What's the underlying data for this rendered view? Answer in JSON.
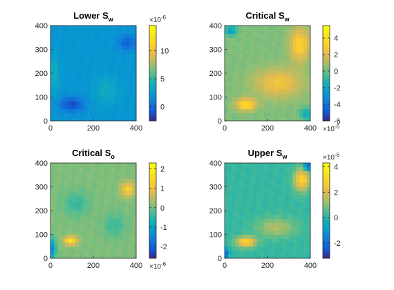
{
  "chart_data": [
    {
      "type": "heatmap",
      "title": "Lower S",
      "title_sub": "w",
      "xlim": [
        0,
        400
      ],
      "ylim": [
        0,
        400
      ],
      "xticks": [
        "0",
        "200",
        "400"
      ],
      "yticks": [
        "0",
        "100",
        "200",
        "300",
        "400"
      ],
      "colorbar": {
        "min": -2.5,
        "max": 14.5,
        "ticks": [
          "0",
          "5",
          "10"
        ],
        "tick_values": [
          0,
          5,
          10
        ],
        "exponent": "×10",
        "exponent_power": "-6",
        "exponent_position": "top"
      },
      "background_level": 0.28,
      "features": [
        {
          "x": 100,
          "y": 70,
          "sx": 55,
          "sy": 30,
          "level": 0.06
        },
        {
          "x": 360,
          "y": 330,
          "sx": 45,
          "sy": 30,
          "level": 0.12
        },
        {
          "x": 260,
          "y": 130,
          "sx": 60,
          "sy": 60,
          "level": 0.36
        },
        {
          "x": 20,
          "y": 200,
          "sx": 20,
          "sy": 80,
          "level": 0.38
        }
      ]
    },
    {
      "type": "heatmap",
      "title": "Critical S",
      "title_sub": "w",
      "xlim": [
        0,
        400
      ],
      "ylim": [
        0,
        400
      ],
      "xticks": [
        "0",
        "200",
        "400"
      ],
      "yticks": [
        "0",
        "100",
        "200",
        "300",
        "400"
      ],
      "colorbar": {
        "min": -6,
        "max": 5.5,
        "ticks": [
          "-6",
          "-4",
          "-2",
          "0",
          "2",
          "4"
        ],
        "tick_values": [
          -6,
          -4,
          -2,
          0,
          2,
          4
        ],
        "exponent": "×10",
        "exponent_power": "-6",
        "exponent_position": "bottom"
      },
      "background_level": 0.55,
      "features": [
        {
          "x": 100,
          "y": 70,
          "sx": 45,
          "sy": 25,
          "level": 0.88
        },
        {
          "x": 250,
          "y": 160,
          "sx": 110,
          "sy": 60,
          "level": 0.76
        },
        {
          "x": 350,
          "y": 320,
          "sx": 45,
          "sy": 70,
          "level": 0.82
        },
        {
          "x": 30,
          "y": 380,
          "sx": 25,
          "sy": 20,
          "level": 0.3
        },
        {
          "x": 380,
          "y": 30,
          "sx": 25,
          "sy": 25,
          "level": 0.35
        }
      ]
    },
    {
      "type": "heatmap",
      "title": "Critical S",
      "title_sub": "o",
      "xlim": [
        0,
        400
      ],
      "ylim": [
        0,
        400
      ],
      "xticks": [
        "0",
        "200",
        "400"
      ],
      "yticks": [
        "0",
        "100",
        "200",
        "300",
        "400"
      ],
      "colorbar": {
        "min": -2.6,
        "max": 2.3,
        "ticks": [
          "-2",
          "-1",
          "0",
          "1",
          "2"
        ],
        "tick_values": [
          -2,
          -1,
          0,
          1,
          2
        ],
        "exponent": "×10",
        "exponent_power": "-6",
        "exponent_position": "bottom"
      },
      "background_level": 0.55,
      "features": [
        {
          "x": 95,
          "y": 75,
          "sx": 30,
          "sy": 18,
          "level": 0.9
        },
        {
          "x": 120,
          "y": 230,
          "sx": 60,
          "sy": 50,
          "level": 0.45
        },
        {
          "x": 360,
          "y": 290,
          "sx": 30,
          "sy": 30,
          "level": 0.82
        },
        {
          "x": 10,
          "y": 40,
          "sx": 15,
          "sy": 40,
          "level": 0.25
        },
        {
          "x": 300,
          "y": 140,
          "sx": 50,
          "sy": 50,
          "level": 0.46
        }
      ]
    },
    {
      "type": "heatmap",
      "title": "Upper S",
      "title_sub": "w",
      "xlim": [
        0,
        400
      ],
      "ylim": [
        0,
        400
      ],
      "xticks": [
        "0",
        "200",
        "400"
      ],
      "yticks": [
        "0",
        "100",
        "200",
        "300",
        "400"
      ],
      "colorbar": {
        "min": -3.2,
        "max": 4.3,
        "ticks": [
          "-2",
          "0",
          "2",
          "4"
        ],
        "tick_values": [
          -2,
          0,
          2,
          4
        ],
        "exponent": "×10",
        "exponent_power": "-6",
        "exponent_position": "top"
      },
      "background_level": 0.45,
      "features": [
        {
          "x": 100,
          "y": 70,
          "sx": 45,
          "sy": 22,
          "level": 0.85
        },
        {
          "x": 240,
          "y": 130,
          "sx": 90,
          "sy": 40,
          "level": 0.62
        },
        {
          "x": 360,
          "y": 330,
          "sx": 35,
          "sy": 45,
          "level": 0.84
        },
        {
          "x": 390,
          "y": 385,
          "sx": 18,
          "sy": 14,
          "level": 0.1
        },
        {
          "x": 10,
          "y": 20,
          "sx": 12,
          "sy": 20,
          "level": 0.15
        }
      ]
    }
  ]
}
